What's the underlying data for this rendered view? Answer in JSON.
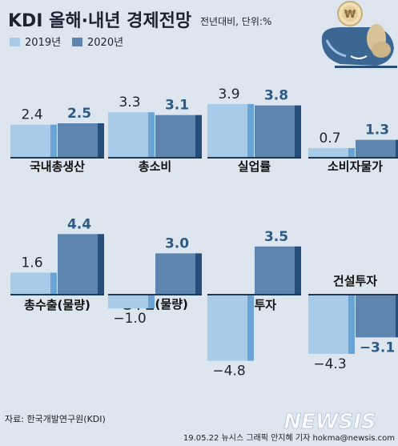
{
  "header": {
    "title": "KDI 올해·내년 경제전망",
    "subtitle": "전년대비, 단위:%"
  },
  "legend": [
    {
      "label": "2019년",
      "color": "#a9cbea"
    },
    {
      "label": "2020년",
      "color": "#5d85ad"
    }
  ],
  "colors": {
    "bar2019": "#a9cbea",
    "bar2019_side": "#6aa3d6",
    "bar2020": "#5d85ad",
    "bar2020_side": "#254e7a",
    "baseline": "#1e3a5a",
    "background": "#dde5ee"
  },
  "footer": {
    "source": "자료: 한국개발연구원(KDI)",
    "credit": "19.05.22 뉴시스 그래픽 안지혜 기자 hokma@newsis.com",
    "watermark": "NEWSIS"
  },
  "chart_data": [
    {
      "type": "bar",
      "title": "국내총생산",
      "categories": [
        "2019년",
        "2020년"
      ],
      "values": [
        2.4,
        2.5
      ],
      "labels": [
        "2.4",
        "2.5"
      ]
    },
    {
      "type": "bar",
      "title": "총소비",
      "categories": [
        "2019년",
        "2020년"
      ],
      "values": [
        3.3,
        3.1
      ],
      "labels": [
        "3.3",
        "3.1"
      ]
    },
    {
      "type": "bar",
      "title": "실업률",
      "categories": [
        "2019년",
        "2020년"
      ],
      "values": [
        3.9,
        3.8
      ],
      "labels": [
        "3.9",
        "3.8"
      ]
    },
    {
      "type": "bar",
      "title": "소비자물가",
      "categories": [
        "2019년",
        "2020년"
      ],
      "values": [
        0.7,
        1.3
      ],
      "labels": [
        "0.7",
        "1.3"
      ]
    },
    {
      "type": "bar",
      "title": "총수출(물량)",
      "categories": [
        "2019년",
        "2020년"
      ],
      "values": [
        1.6,
        4.4
      ],
      "labels": [
        "1.6",
        "4.4"
      ]
    },
    {
      "type": "bar",
      "title": "총수입(물량)",
      "categories": [
        "2019년",
        "2020년"
      ],
      "values": [
        -1.0,
        3.0
      ],
      "labels": [
        "−1.0",
        "3.0"
      ]
    },
    {
      "type": "bar",
      "title": "설비투자",
      "categories": [
        "2019년",
        "2020년"
      ],
      "values": [
        -4.8,
        3.5
      ],
      "labels": [
        "−4.8",
        "3.5"
      ]
    },
    {
      "type": "bar",
      "title": "건설투자",
      "categories": [
        "2019년",
        "2020년"
      ],
      "values": [
        -4.3,
        -3.1
      ],
      "labels": [
        "−4.3",
        "−3.1"
      ]
    }
  ]
}
